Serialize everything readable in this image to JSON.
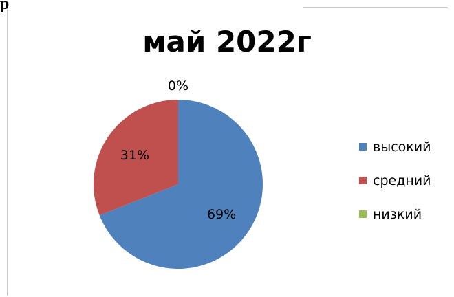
{
  "corner_text": "р",
  "chart_data": {
    "type": "pie",
    "title": "май 2022г",
    "categories": [
      "высокий",
      "средний",
      "низкий"
    ],
    "values": [
      69,
      31,
      0
    ],
    "labels": [
      "69%",
      "31%",
      "0%"
    ],
    "colors": [
      "#4f81bd",
      "#c0504d",
      "#9bbb59"
    ],
    "legend_position": "right"
  }
}
